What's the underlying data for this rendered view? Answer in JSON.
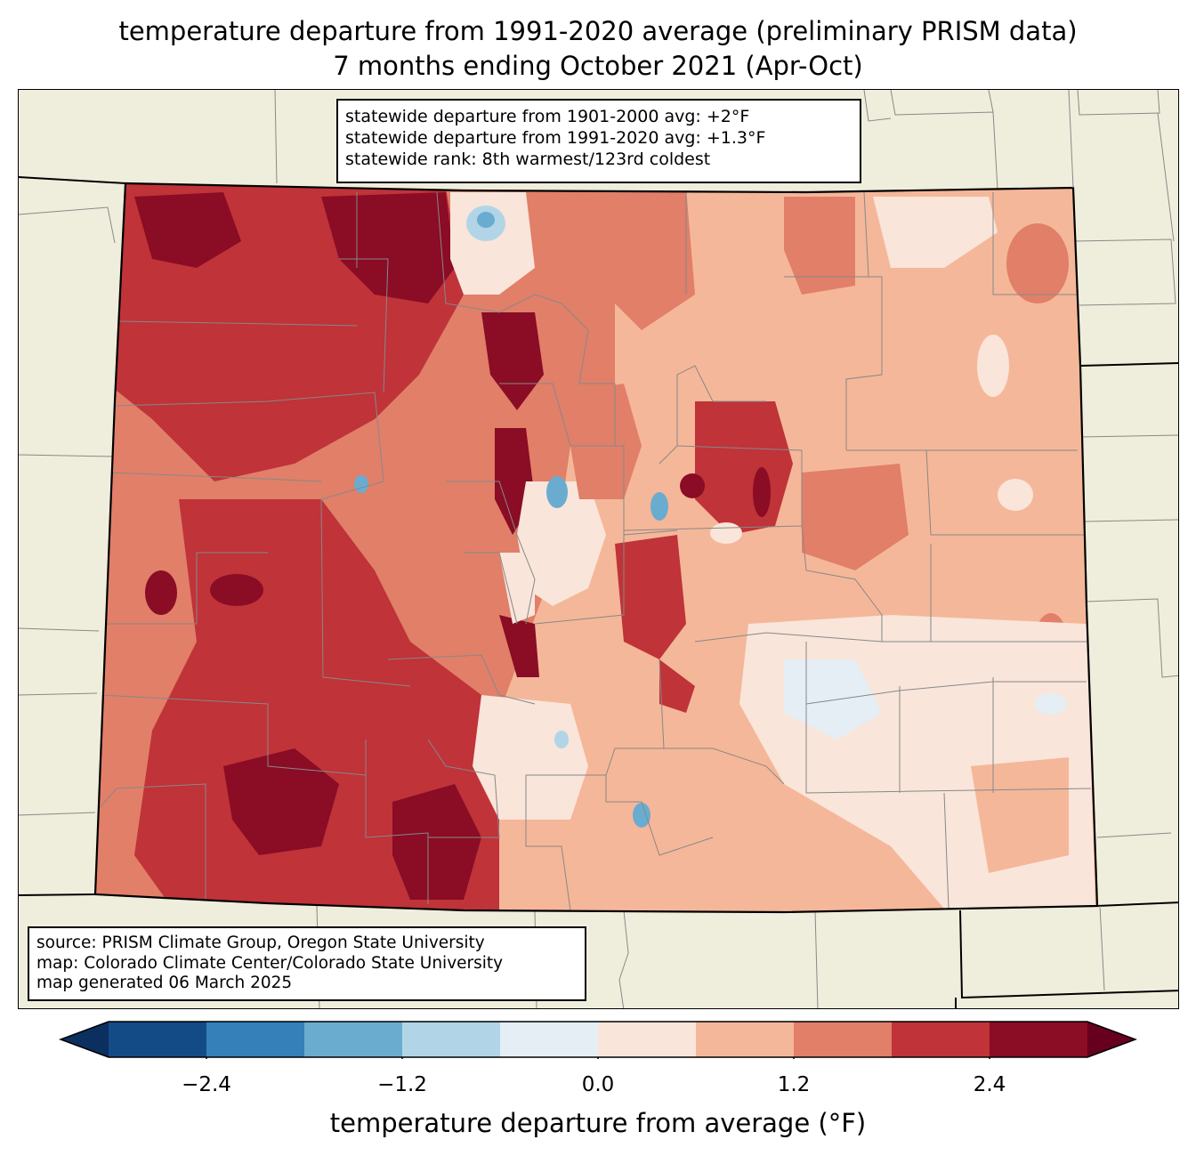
{
  "title_line1": "temperature departure from 1991-2020 average (preliminary PRISM data)",
  "title_line2": "7 months ending October 2021 (Apr-Oct)",
  "stats": {
    "line1": "statewide departure from 1901-2000 avg: +2°F",
    "line2": "statewide departure from 1991-2020 avg: +1.3°F",
    "line3": "statewide rank: 8th warmest/123rd coldest"
  },
  "source": {
    "line1": "source: PRISM Climate Group, Oregon State University",
    "line2": "map: Colorado Climate Center/Colorado State University",
    "line3": "map generated 06 March 2025"
  },
  "colorbar": {
    "label": "temperature departure from average (°F)",
    "bounds": [
      -3.0,
      -2.4,
      -1.8,
      -1.2,
      -0.6,
      0.0,
      0.6,
      1.2,
      1.8,
      2.4,
      3.0
    ],
    "colors": [
      "#134b87",
      "#3580b9",
      "#6aacd0",
      "#b1d5e7",
      "#e4eef4",
      "#f9e5da",
      "#f5b799",
      "#e17f69",
      "#bf3339",
      "#8a0c25"
    ],
    "under_color": "#0b2f5e",
    "over_color": "#67001f",
    "extend": "both",
    "ticks": [
      "−2.4",
      "−1.2",
      "0.0",
      "1.2",
      "2.4"
    ],
    "tick_values": [
      -2.4,
      -1.2,
      0.0,
      1.2,
      2.4
    ]
  },
  "colors": {
    "land_background": "#efeedc",
    "county_lines": "#888888",
    "state_lines": "#000000"
  }
}
